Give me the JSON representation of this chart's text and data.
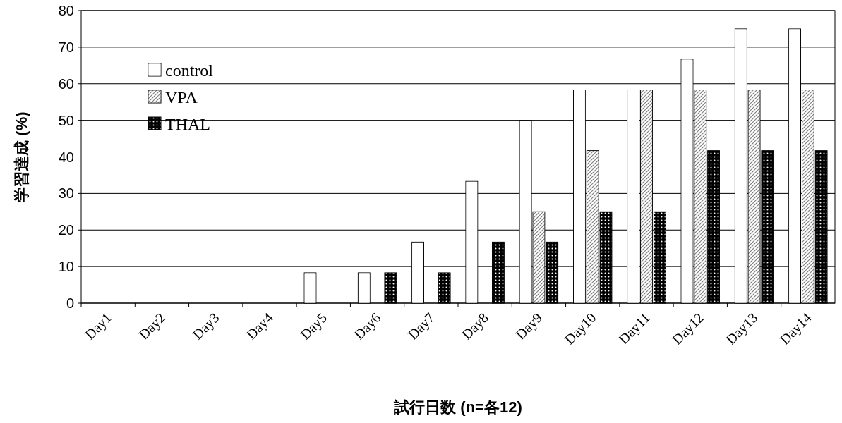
{
  "chart_data": {
    "type": "bar",
    "xlabel": "試行日数 (n=各12)",
    "ylabel": "学習達成 (%)",
    "categories": [
      "Day1",
      "Day2",
      "Day3",
      "Day4",
      "Day5",
      "Day6",
      "Day7",
      "Day8",
      "Day9",
      "Day10",
      "Day11",
      "Day12",
      "Day13",
      "Day14"
    ],
    "series": [
      {
        "name": "control",
        "color": "#ffffff",
        "values": [
          0,
          0,
          0,
          0,
          8.3,
          8.3,
          16.7,
          33.3,
          50,
          58.3,
          58.3,
          66.7,
          75,
          75
        ]
      },
      {
        "name": "VPA",
        "color": "#808080",
        "values": [
          0,
          0,
          0,
          0,
          0,
          0,
          0,
          0,
          25,
          41.7,
          58.3,
          58.3,
          58.3,
          58.3
        ]
      },
      {
        "name": "THAL",
        "color": "#000000",
        "values": [
          0,
          0,
          0,
          0,
          0,
          8.3,
          8.3,
          16.7,
          16.7,
          25,
          25,
          41.7,
          41.7,
          41.7
        ]
      }
    ],
    "ylim": [
      0,
      80
    ],
    "yticks": [
      0,
      10,
      20,
      30,
      40,
      50,
      60,
      70,
      80
    ],
    "grid": "y",
    "legend": "top left"
  }
}
